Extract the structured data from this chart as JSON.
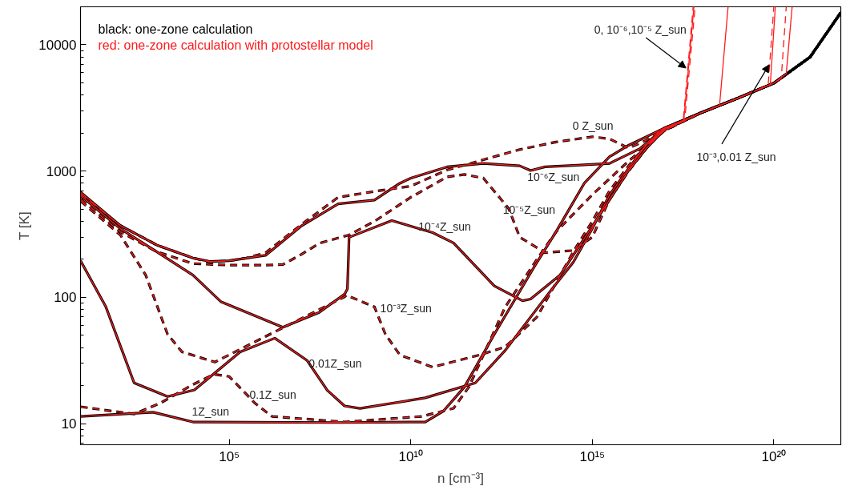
{
  "chart_data": {
    "type": "line",
    "xlabel": "n [cm⁻³]",
    "ylabel": "T [K]",
    "log": "xy",
    "grid": false,
    "legend": "top left",
    "xlim": [
      8,
      7e+21
    ],
    "ylim": [
      6.8,
      20000
    ],
    "xticks": [
      {
        "value": 100000.0,
        "label": "10⁵"
      },
      {
        "value": 10000000000.0,
        "label": "10¹⁰"
      },
      {
        "value": 1000000000000000.0,
        "label": "10¹⁵"
      },
      {
        "value": 1e+20,
        "label": "10²⁰"
      }
    ],
    "yticks": [
      10,
      100,
      1000,
      10000
    ],
    "series": [
      {
        "name": "black: one-zone calculation",
        "color": "#000000",
        "line_style": "dashed",
        "x": [
          8,
          100.0,
          1000.0,
          10000.0,
          30000.0,
          100000.0,
          300000.0,
          1000000.0,
          10000000.0,
          100000000.0,
          1000000000.0,
          10000000000.0,
          100000000000.0,
          1000000000000.0,
          10000000000000.0,
          100000000000000.0,
          1000000000000000.0,
          3000000000000000.0,
          1e+16,
          3e+16,
          1e+17,
          1e+18,
          1e+19,
          1e+20,
          1e+21,
          7e+21
        ],
        "values": [
          660,
          370,
          260,
          205,
          190,
          195,
          205,
          225,
          380,
          620,
          690,
          760,
          1020,
          1230,
          1480,
          1700,
          1870,
          1800,
          1520,
          1750,
          2200,
          2900,
          3770,
          4970,
          8000,
          18000
        ]
      },
      {
        "color": "#000000",
        "line_style": "solid",
        "x": [
          8,
          100.0,
          1000.0,
          10000.0,
          30000.0,
          100000.0,
          1000000.0,
          10000000.0,
          100000000.0,
          1000000000.0,
          5000000000.0,
          10000000000.0,
          100000000000.0,
          1000000000000.0,
          10000000000000.0,
          20000000000000.0,
          50000000000000.0,
          300000000000000.0,
          3000000000000000.0,
          2e+16,
          1e+17,
          1e+18,
          1e+19,
          1e+20,
          1e+21,
          7e+21
        ],
        "values": [
          680,
          370,
          260,
          205,
          192,
          195,
          215,
          370,
          550,
          590,
          800,
          880,
          1080,
          1150,
          1100,
          1010,
          1080,
          1110,
          1150,
          1500,
          2200,
          2900,
          3770,
          4970,
          8000,
          18000
        ]
      },
      {
        "color": "#000000",
        "line_style": "dashed",
        "x": [
          8,
          100.0,
          1000.0,
          10000.0,
          100000.0,
          1000000.0,
          3000000.0,
          10000000.0,
          30000000.0,
          200000000.0,
          1000000000.0,
          10000000000.0,
          100000000000.0,
          300000000000.0,
          1000000000000.0,
          5000000000000.0,
          10000000000000.0,
          50000000000000.0,
          300000000000000.0,
          1000000000000000.0,
          3000000000000000.0,
          1e+16,
          3e+16,
          1e+17,
          1e+18,
          1e+19,
          1e+20,
          1e+21,
          7e+21
        ],
        "values": [
          600,
          330,
          230,
          185,
          180,
          180,
          182,
          220,
          268,
          312,
          400,
          620,
          900,
          940,
          880,
          504,
          300,
          226,
          235,
          300,
          600,
          1000,
          1500,
          2150,
          2900,
          3770,
          4970,
          8000,
          18000
        ]
      },
      {
        "color": "#000000",
        "line_style": "solid",
        "x": [
          8,
          100.0,
          1000.0,
          10000.0,
          60000.0,
          3000000.0,
          30000000.0,
          150000000.0,
          180000000.0,
          200000000.0,
          3000000000.0,
          40000000000.0,
          150000000000.0,
          2000000000000.0,
          12000000000000.0,
          20000000000000.0,
          130000000000000.0,
          1000000000000000.0,
          1e+16,
          3e+16,
          1e+17,
          1e+18,
          1e+19,
          1e+20,
          1e+21,
          7e+21
        ],
        "values": [
          640,
          350,
          230,
          150,
          92,
          58,
          76,
          106,
          117,
          299,
          405,
          326,
          270,
          123,
          94,
          97,
          150,
          365,
          1010,
          1500,
          2150,
          2900,
          3770,
          4970,
          8000,
          18000
        ]
      },
      {
        "color": "#000000",
        "line_style": "dashed",
        "x": [
          8,
          100.0,
          500.0,
          2000.0,
          5000.0,
          40000.0,
          1000000.0,
          150000000.0,
          170000000.0,
          1000000000.0,
          2000000000.0,
          5000000000.0,
          40000000000.0,
          800000000000.0,
          4000000000000.0,
          30000000000000.0,
          100000000000000.0,
          300000000000000.0,
          1000000000000000.0,
          3000000000000000.0,
          1e+16,
          3e+16,
          1e+17,
          1e+18,
          1e+19,
          1e+20,
          1e+21,
          7e+21
        ],
        "values": [
          580,
          312,
          150,
          51,
          37,
          30.7,
          49,
          101,
          104,
          84,
          51,
          35,
          28,
          35,
          40.5,
          70,
          130,
          230,
          400,
          700,
          1100,
          1600,
          2100,
          2900,
          3770,
          4970,
          8000,
          18000
        ]
      },
      {
        "color": "#000000",
        "line_style": "solid",
        "x": [
          8,
          40.0,
          240.0,
          2000.0,
          11000.0,
          200000.0,
          1800000.0,
          14000000.0,
          50000000.0,
          150000000.0,
          400000000.0,
          25000000000.0,
          600000000000.0,
          4000000000000.0,
          70000000000000.0,
          300000000000000.0,
          1000000000000000.0,
          3000000000000000.0,
          1e+16,
          3e+16,
          1e+17,
          1e+18,
          1e+19,
          1e+20,
          1e+21,
          7e+21
        ],
        "values": [
          195,
          84,
          21,
          16.4,
          18.5,
          37,
          47.5,
          31.6,
          18.4,
          13.8,
          13.2,
          16,
          21,
          38,
          112,
          190,
          350,
          650,
          1050,
          1600,
          2150,
          2900,
          3770,
          4970,
          8000,
          18000
        ]
      },
      {
        "color": "#000000",
        "line_style": "dashed",
        "x": [
          8,
          240.0,
          1300.0,
          10000.0,
          38000.0,
          100000.0,
          500000.0,
          1500000.0,
          150000000.0,
          20000000000.0,
          150000000000.0,
          400000000000.0,
          4000000000000.0,
          30000000000000.0,
          100000000000000.0,
          1000000000000000.0,
          1e+16,
          1e+17,
          1e+18,
          1e+19,
          1e+20,
          1e+21,
          7e+21
        ],
        "values": [
          13.6,
          11.9,
          14.6,
          20.4,
          24.6,
          23.6,
          14.6,
          11.4,
          10.3,
          11.4,
          13.2,
          19.5,
          84,
          200,
          330,
          650,
          1200,
          2100,
          2900,
          3770,
          4970,
          8000,
          18000
        ]
      },
      {
        "color": "#000000",
        "line_style": "solid",
        "x": [
          8,
          800.0,
          10000.0,
          100000000.0,
          25000000000.0,
          80000000000.0,
          300000000000.0,
          2000000000000.0,
          25000000000000.0,
          100000000000000.0,
          600000000000000.0,
          3000000000000000.0,
          1e+16,
          1e+17,
          1e+18,
          1e+19,
          1e+20,
          1e+21,
          7e+21
        ],
        "values": [
          11.4,
          12.3,
          10.3,
          10.2,
          10.3,
          12.6,
          19.5,
          51,
          174,
          330,
          800,
          1300,
          1600,
          2200,
          2900,
          3770,
          4970,
          8000,
          18000
        ]
      },
      {
        "name": "red: one-zone calculation with protostellar model",
        "color": "#ff1a1a",
        "line_style": "dashed",
        "x": [
          8,
          100.0,
          1000.0,
          10000.0,
          30000.0,
          100000.0,
          300000.0,
          1000000.0,
          10000000.0,
          100000000.0,
          1000000000.0,
          10000000000.0,
          100000000000.0,
          1000000000000.0,
          10000000000000.0,
          100000000000000.0,
          1000000000000000.0,
          3000000000000000.0,
          1e+16,
          3e+16,
          1e+17,
          3.2e+17,
          6e+17
        ],
        "values": [
          660,
          370,
          260,
          205,
          190,
          195,
          205,
          225,
          380,
          620,
          690,
          760,
          1020,
          1230,
          1480,
          1700,
          1870,
          1800,
          1520,
          1750,
          2200,
          2500,
          20000
        ]
      },
      {
        "color": "#ff1a1a",
        "line_style": "solid",
        "x": [
          8,
          100.0,
          1000.0,
          10000.0,
          30000.0,
          100000.0,
          1000000.0,
          10000000.0,
          100000000.0,
          1000000000.0,
          5000000000.0,
          10000000000.0,
          100000000000.0,
          1000000000000.0,
          10000000000000.0,
          20000000000000.0,
          50000000000000.0,
          300000000000000.0,
          3000000000000000.0,
          2e+16,
          1e+17,
          3.3e+17,
          6.3e+17
        ],
        "values": [
          680,
          370,
          260,
          205,
          192,
          195,
          215,
          370,
          550,
          590,
          800,
          880,
          1080,
          1150,
          1100,
          1010,
          1080,
          1110,
          1150,
          1500,
          2200,
          2500,
          20000
        ]
      },
      {
        "color": "#ff1a1a",
        "line_style": "dashed",
        "x": [
          8,
          100.0,
          1000.0,
          10000.0,
          100000.0,
          1000000.0,
          3000000.0,
          10000000.0,
          30000000.0,
          200000000.0,
          1000000000.0,
          10000000000.0,
          100000000000.0,
          300000000000.0,
          1000000000000.0,
          5000000000000.0,
          10000000000000.0,
          50000000000000.0,
          300000000000000.0,
          1000000000000000.0,
          3000000000000000.0,
          1e+16,
          3e+16,
          1e+17,
          3.5e+17,
          6.8e+17
        ],
        "values": [
          600,
          330,
          230,
          185,
          180,
          180,
          182,
          220,
          268,
          312,
          400,
          620,
          900,
          940,
          880,
          504,
          300,
          226,
          235,
          300,
          600,
          1000,
          1500,
          2150,
          2500,
          20000
        ]
      },
      {
        "color": "#ff1a1a",
        "line_style": "solid",
        "x": [
          8,
          100.0,
          1000.0,
          10000.0,
          60000.0,
          3000000.0,
          30000000.0,
          150000000.0,
          180000000.0,
          200000000.0,
          3000000000.0,
          40000000000.0,
          150000000000.0,
          2000000000000.0,
          12000000000000.0,
          20000000000000.0,
          130000000000000.0,
          1000000000000000.0,
          1e+16,
          3e+16,
          1e+17,
          1e+18,
          3.2e+18,
          5.5e+18
        ],
        "values": [
          640,
          350,
          230,
          150,
          92,
          58,
          76,
          106,
          117,
          299,
          405,
          326,
          270,
          123,
          94,
          97,
          150,
          365,
          1010,
          1500,
          2150,
          2900,
          3300,
          20000
        ]
      },
      {
        "color": "#ff1a1a",
        "line_style": "dashed",
        "x": [
          8,
          100.0,
          500.0,
          2000.0,
          5000.0,
          40000.0,
          1000000.0,
          150000000.0,
          170000000.0,
          1000000000.0,
          2000000000.0,
          5000000000.0,
          40000000000.0,
          800000000000.0,
          4000000000000.0,
          30000000000000.0,
          100000000000000.0,
          300000000000000.0,
          1000000000000000.0,
          3000000000000000.0,
          1e+16,
          3e+16,
          1e+17,
          1e+18,
          1e+19,
          7e+19,
          1e+20
        ],
        "values": [
          580,
          312,
          150,
          51,
          37,
          30.7,
          49,
          101,
          104,
          84,
          51,
          35,
          28,
          35,
          40.5,
          70,
          130,
          230,
          400,
          700,
          1100,
          1600,
          2100,
          2900,
          3770,
          4800,
          20000
        ]
      },
      {
        "color": "#ff1a1a",
        "line_style": "solid",
        "x": [
          8,
          40.0,
          240.0,
          2000.0,
          11000.0,
          200000.0,
          1800000.0,
          14000000.0,
          50000000.0,
          150000000.0,
          400000000.0,
          25000000000.0,
          600000000000.0,
          4000000000000.0,
          70000000000000.0,
          300000000000000.0,
          1000000000000000.0,
          3000000000000000.0,
          1e+16,
          3e+16,
          1e+17,
          1e+18,
          1e+19,
          8e+19,
          1.1e+20
        ],
        "values": [
          195,
          84,
          21,
          16.4,
          18.5,
          37,
          47.5,
          31.6,
          18.4,
          13.8,
          13.2,
          16,
          21,
          38,
          112,
          190,
          350,
          650,
          1050,
          1600,
          2150,
          2900,
          3770,
          4850,
          20000
        ]
      },
      {
        "color": "#ff1a1a",
        "line_style": "dashed",
        "x": [
          8,
          240.0,
          1300.0,
          10000.0,
          38000.0,
          100000.0,
          500000.0,
          1500000.0,
          150000000.0,
          20000000000.0,
          150000000000.0,
          400000000000.0,
          4000000000000.0,
          30000000000000.0,
          100000000000000.0,
          1000000000000000.0,
          1e+16,
          1e+17,
          1e+18,
          1e+19,
          1e+20,
          1.6e+20,
          2.2e+20
        ],
        "values": [
          13.6,
          11.9,
          14.6,
          20.4,
          24.6,
          23.6,
          14.6,
          11.4,
          10.3,
          11.4,
          13.2,
          19.5,
          84,
          200,
          330,
          650,
          1200,
          2100,
          2900,
          3770,
          4970,
          5400,
          20000
        ]
      },
      {
        "color": "#ff1a1a",
        "line_style": "solid",
        "x": [
          8,
          800.0,
          10000.0,
          100000000.0,
          25000000000.0,
          80000000000.0,
          300000000000.0,
          2000000000000.0,
          25000000000000.0,
          100000000000000.0,
          600000000000000.0,
          3000000000000000.0,
          1e+16,
          1e+17,
          1e+18,
          1e+19,
          1e+20,
          2.2e+20,
          3.2e+20
        ],
        "values": [
          11.4,
          12.3,
          10.3,
          10.2,
          10.3,
          12.6,
          19.5,
          51,
          174,
          330,
          800,
          1300,
          1600,
          2200,
          2900,
          3770,
          4970,
          5900,
          20000
        ]
      }
    ],
    "annotations": [
      "0 Z_sun",
      "10⁻⁶Z_sun",
      "10⁻⁵Z_sun",
      "10⁻⁴Z_sun",
      "10⁻³Z_sun",
      "0.01Z_sun",
      "0.1Z_sun",
      "1Z_sun",
      {
        "text": "0, 10⁻⁶,10⁻⁵ Z_sun",
        "x": 3.8e+17,
        "y": 6550
      },
      {
        "text": "10⁻³,0.01 Z_sun",
        "x": 7.4e+19,
        "y": 6950
      }
    ]
  }
}
